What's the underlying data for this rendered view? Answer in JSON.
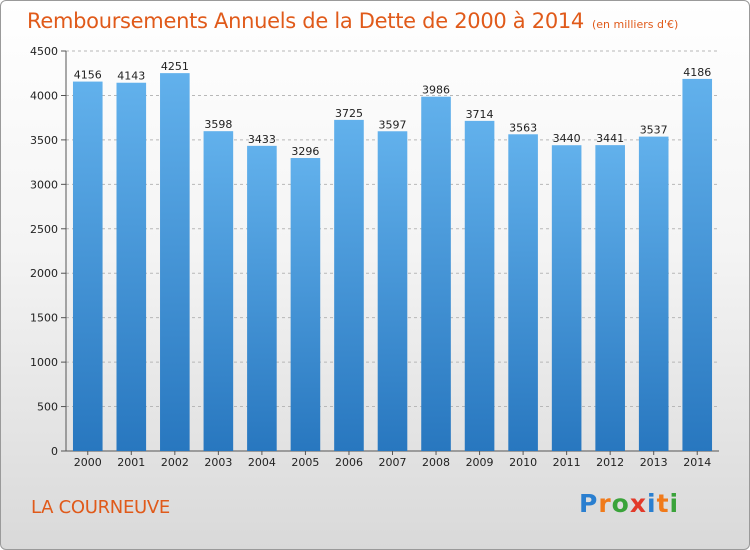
{
  "title": "Remboursements Annuels de la Dette de 2000 à 2014",
  "subtitle": "(en milliers d'€)",
  "city": "LA COURNEUVE",
  "logo": {
    "letters": [
      "P",
      "r",
      "o",
      "x",
      "i",
      "t",
      "i"
    ],
    "colors": [
      "#2a7fd0",
      "#f07a1a",
      "#3aa33a",
      "#e23a2a",
      "#2a7fd0",
      "#f07a1a",
      "#3aa33a"
    ]
  },
  "colors": {
    "bar_top": "#62b1ec",
    "bar_bottom": "#2877bf",
    "grid": "#b8b8b8",
    "title": "#e05a1a"
  },
  "chart_data": {
    "type": "bar",
    "title": "Remboursements Annuels de la Dette de 2000 à 2014",
    "xlabel": "",
    "ylabel": "",
    "ylim": [
      0,
      4500
    ],
    "yticks": [
      0,
      500,
      1000,
      1500,
      2000,
      2500,
      3000,
      3500,
      4000,
      4500
    ],
    "grid": true,
    "categories": [
      "2000",
      "2001",
      "2002",
      "2003",
      "2004",
      "2005",
      "2006",
      "2007",
      "2008",
      "2009",
      "2010",
      "2011",
      "2012",
      "2013",
      "2014"
    ],
    "values": [
      4156,
      4143,
      4251,
      3598,
      3433,
      3296,
      3725,
      3597,
      3986,
      3714,
      3563,
      3440,
      3441,
      3537,
      4186
    ]
  }
}
